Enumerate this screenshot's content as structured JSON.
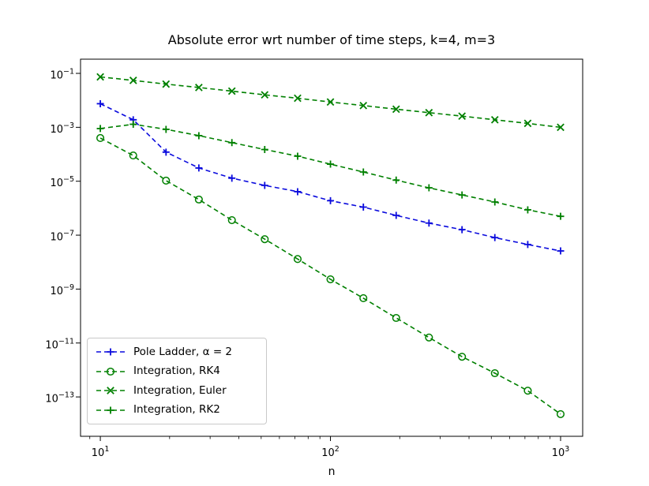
{
  "figure": {
    "title": "Absolute error wrt number of time steps, k=4, m=3",
    "xlabel": "n"
  },
  "chart_data": {
    "type": "line",
    "title": "Absolute error wrt number of time steps, k=4, m=3",
    "xlabel": "n",
    "ylabel": "",
    "x_scale": "log",
    "y_scale": "log",
    "grid": false,
    "legend_position": "lower left",
    "xlim_log10": [
      0.914,
      3.096
    ],
    "ylim_log10": [
      -14.46,
      -0.473
    ],
    "x_ticks_log10": [
      1,
      2,
      3
    ],
    "y_ticks_log10": [
      -1,
      -3,
      -5,
      -7,
      -9,
      -11,
      -13
    ],
    "x": [
      10,
      13.9,
      19.3,
      26.8,
      37.3,
      51.8,
      72,
      100,
      139,
      193,
      268,
      373,
      518,
      720,
      1000
    ],
    "series": [
      {
        "label": "Pole Ladder, α = 2",
        "color": "#0b0bdd",
        "marker": "plus",
        "linestyle": "dashed",
        "values": [
          0.0075,
          0.0019,
          0.00012,
          3.1e-05,
          1.3e-05,
          7e-06,
          4.1e-06,
          1.9e-06,
          1.1e-06,
          5.4e-07,
          2.8e-07,
          1.6e-07,
          8.1e-08,
          4.5e-08,
          2.6e-08
        ]
      },
      {
        "label": "Integration, RK4",
        "color": "#008000",
        "marker": "circle",
        "linestyle": "dashed",
        "values": [
          0.0004,
          9e-05,
          1.05e-05,
          2.1e-06,
          3.6e-07,
          7.1e-08,
          1.3e-08,
          2.3e-09,
          4.6e-10,
          8.5e-11,
          1.6e-11,
          3.1e-12,
          7.6e-13,
          1.7e-13,
          2.3e-14
        ]
      },
      {
        "label": "Integration, Euler",
        "color": "#008000",
        "marker": "x",
        "linestyle": "dashed",
        "values": [
          0.074,
          0.055,
          0.04,
          0.03,
          0.022,
          0.016,
          0.012,
          0.0087,
          0.0064,
          0.0047,
          0.0035,
          0.0026,
          0.0019,
          0.0014,
          0.001
        ]
      },
      {
        "label": "Integration, RK2",
        "color": "#008000",
        "marker": "plus",
        "linestyle": "dashed",
        "values": [
          0.0009,
          0.0013,
          0.00084,
          0.00049,
          0.00027,
          0.00015,
          8.5e-05,
          4.3e-05,
          2.2e-05,
          1.1e-05,
          5.7e-06,
          3.1e-06,
          1.7e-06,
          8.7e-07,
          5e-07
        ]
      }
    ]
  }
}
